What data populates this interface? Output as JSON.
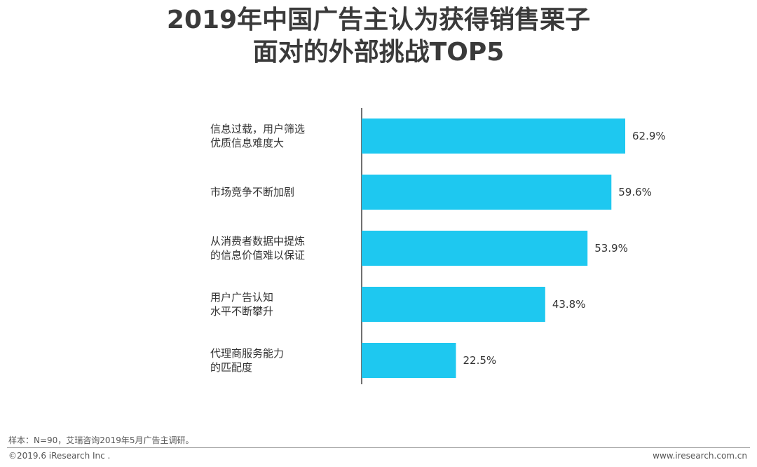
{
  "chart_data": {
    "type": "bar",
    "orientation": "horizontal",
    "title_lines": [
      "2019年中国广告主认为获得销售栗子",
      "面对的外部挑战TOP5"
    ],
    "categories": [
      [
        "信息过载，用户筛选",
        "优质信息难度大"
      ],
      [
        "市场竞争不断加剧"
      ],
      [
        "从消费者数据中提炼",
        "的信息价值难以保证"
      ],
      [
        "用户广告认知",
        "水平不断攀升"
      ],
      [
        "代理商服务能力",
        "的匹配度"
      ]
    ],
    "values": [
      62.9,
      59.6,
      53.9,
      43.8,
      22.5
    ],
    "value_labels": [
      "62.9%",
      "59.6%",
      "53.9%",
      "43.8%",
      "22.5%"
    ],
    "bar_color": "#1ec8f0",
    "grid": false,
    "legend": "none"
  },
  "footer": {
    "source": "样本：N=90，艾瑞咨询2019年5月广告主调研。",
    "copyright": "©2019.6 iResearch Inc .",
    "website": "www.iresearch.com.cn"
  }
}
